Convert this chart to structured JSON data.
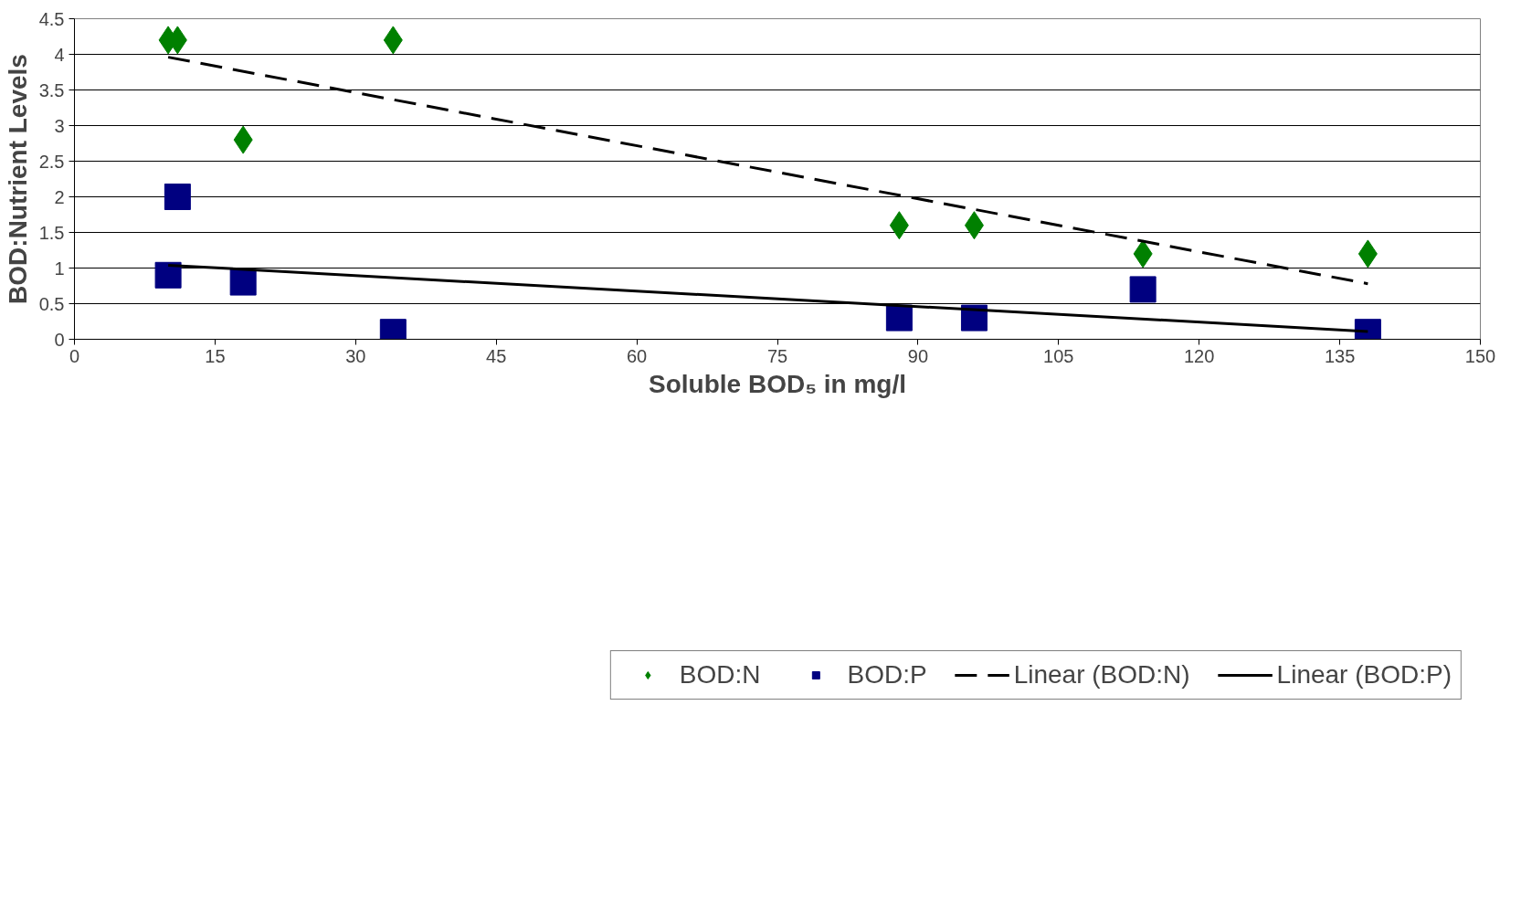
{
  "chart_data": {
    "type": "scatter",
    "xlabel": "Soluble BOD₅ in mg/l",
    "ylabel": "BOD:Nutrient Levels",
    "xlim": [
      0,
      150
    ],
    "xticks": [
      0,
      15,
      30,
      45,
      60,
      75,
      90,
      105,
      120,
      135,
      150
    ],
    "ylim": [
      0,
      4.5
    ],
    "yticks": [
      0,
      0.5,
      1,
      1.5,
      2,
      2.5,
      3,
      3.5,
      4,
      4.5
    ],
    "grid": "y",
    "legend": "bottom",
    "series": [
      {
        "name": "BOD:N",
        "color": "#008000",
        "marker": "diamond",
        "x": [
          10,
          11,
          34,
          18,
          88,
          96,
          114,
          138
        ],
        "values": [
          4.2,
          4.2,
          4.2,
          2.8,
          1.6,
          1.6,
          1.2,
          1.2
        ]
      },
      {
        "name": "BOD:P",
        "color": "#000080",
        "marker": "square",
        "x": [
          10,
          11,
          18,
          34,
          88,
          96,
          114,
          138
        ],
        "values": [
          0.9,
          2.0,
          0.8,
          0.1,
          0.3,
          0.3,
          0.7,
          0.1
        ]
      },
      {
        "name": "Linear (BOD:N)",
        "type": "line",
        "color": "#000000",
        "line_style": "dashed",
        "x": [
          10,
          138
        ],
        "values": [
          3.96,
          0.78
        ]
      },
      {
        "name": "Linear (BOD:P)",
        "type": "line",
        "color": "#000000",
        "line_style": "solid",
        "x": [
          10,
          138
        ],
        "values": [
          1.04,
          0.11
        ]
      }
    ]
  }
}
